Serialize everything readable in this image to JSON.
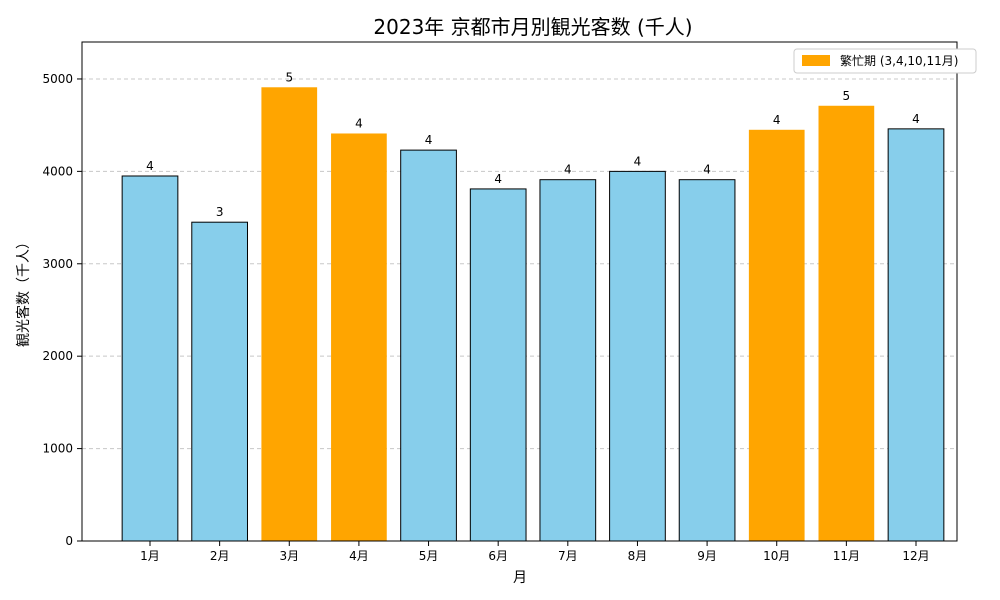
{
  "chart_data": {
    "type": "bar",
    "title": "2023年 京都市月別観光客数 (千人)",
    "xlabel": "月",
    "ylabel": "観光客数（千人）",
    "categories": [
      "1月",
      "2月",
      "3月",
      "4月",
      "5月",
      "6月",
      "7月",
      "8月",
      "9月",
      "10月",
      "11月",
      "12月"
    ],
    "values": [
      3950,
      3450,
      4910,
      4410,
      4230,
      3810,
      3910,
      4000,
      3910,
      4450,
      4710,
      4460
    ],
    "data_labels": [
      "4",
      "3",
      "5",
      "4",
      "4",
      "4",
      "4",
      "4",
      "4",
      "4",
      "5",
      "4"
    ],
    "highlighted": [
      false,
      false,
      true,
      true,
      false,
      false,
      false,
      false,
      false,
      true,
      true,
      false
    ],
    "ylim": [
      0,
      5400
    ],
    "yticks": [
      0,
      1000,
      2000,
      3000,
      4000,
      5000
    ],
    "grid": "y-dashed",
    "legend": {
      "position": "top-right",
      "entries": [
        {
          "label": "繁忙期 (3,4,10,11月)",
          "color": "#FFA500"
        }
      ]
    },
    "colors": {
      "normal": "#87CEEB",
      "highlight": "#FFA500",
      "edge": "#000000"
    }
  }
}
